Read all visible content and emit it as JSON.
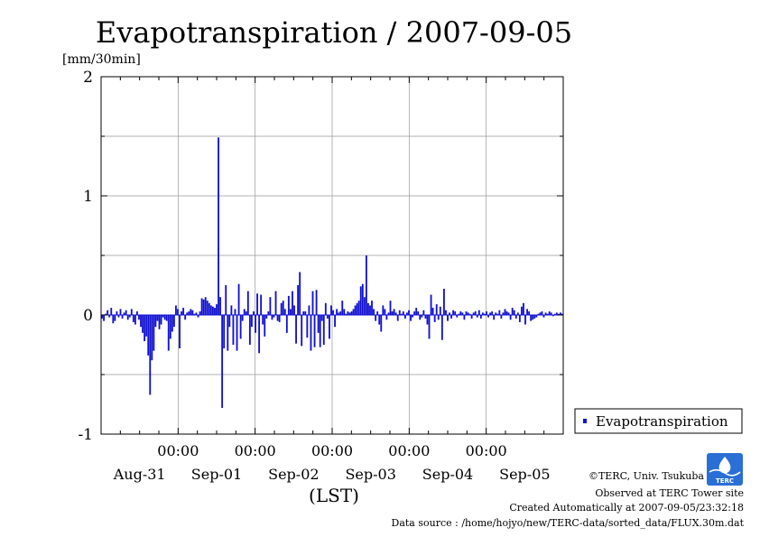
{
  "title": "Evapotranspiration / 2007-09-05",
  "unit_label": "[mm/30min]",
  "xlabel": "(LST)",
  "legend": {
    "label": "Evapotranspiration",
    "color": "#1010d0"
  },
  "footer": {
    "copyright": "©TERC, Univ. Tsukuba",
    "observed": "Observed at TERC Tower site",
    "created": "Created Automatically at 2007-09-05/23:32:18",
    "source": "Data source : /home/hojyo/new/TERC-data/sorted_data/FLUX.30m.dat"
  },
  "logo": {
    "text": "TERC",
    "color": "#2a6fd6"
  },
  "chart_data": {
    "type": "bar",
    "title": "Evapotranspiration / 2007-09-05",
    "ylabel": "[mm/30min]",
    "xlabel": "(LST)",
    "ylim": [
      -1,
      2
    ],
    "yticks": [
      -1,
      0,
      1,
      2
    ],
    "xlim_days": [
      0,
      6
    ],
    "day_labels": [
      "Aug-31",
      "Sep-01",
      "Sep-02",
      "Sep-03",
      "Sep-04",
      "Sep-05"
    ],
    "midnight_labels": [
      "00:00",
      "00:00",
      "00:00",
      "00:00",
      "00:00"
    ],
    "grid": true,
    "legend_position": "right",
    "series": [
      {
        "name": "Evapotranspiration",
        "color": "#1010d0",
        "values": [
          -0.03,
          -0.05,
          0.01,
          0.04,
          -0.02,
          0.06,
          -0.07,
          -0.05,
          0.03,
          -0.02,
          0.05,
          -0.03,
          0.02,
          0.04,
          -0.04,
          -0.02,
          0.05,
          -0.06,
          -0.08,
          0.03,
          -0.04,
          -0.1,
          -0.15,
          -0.22,
          -0.18,
          -0.34,
          -0.67,
          -0.38,
          -0.3,
          -0.1,
          -0.05,
          -0.12,
          -0.08,
          -0.02,
          -0.04,
          -0.05,
          -0.3,
          -0.2,
          -0.14,
          -0.1,
          0.08,
          0.05,
          -0.28,
          0.03,
          0.06,
          -0.04,
          0.02,
          0.03,
          0.05,
          0.04,
          0.01,
          0.02,
          -0.02,
          0.03,
          0.14,
          0.13,
          0.15,
          0.12,
          0.1,
          0.08,
          0.07,
          0.06,
          0.09,
          1.49,
          0.15,
          -0.78,
          -0.28,
          0.25,
          -0.3,
          -0.1,
          0.08,
          -0.25,
          0.05,
          -0.3,
          0.26,
          -0.2,
          -0.05,
          0.05,
          0.03,
          0.2,
          -0.25,
          -0.1,
          0.03,
          -0.15,
          0.18,
          -0.32,
          0.17,
          -0.08,
          -0.18,
          -0.03,
          0.03,
          0.15,
          -0.04,
          -0.02,
          0.2,
          -0.05,
          -0.06,
          0.1,
          0.12,
          0.05,
          -0.15,
          0.16,
          0.05,
          0.2,
          0.08,
          -0.24,
          0.25,
          0.36,
          -0.26,
          0.03,
          0.03,
          -0.19,
          0.08,
          -0.3,
          0.2,
          -0.27,
          0.21,
          -0.15,
          -0.27,
          -0.05,
          -0.25,
          0.1,
          -0.03,
          -0.2,
          0.08,
          0.04,
          -0.1,
          0.05,
          0.02,
          0.03,
          0.12,
          0.05,
          0.01,
          0.03,
          0.02,
          0.03,
          0.05,
          0.08,
          0.1,
          0.12,
          0.24,
          0.26,
          0.15,
          0.5,
          0.1,
          0.08,
          0.12,
          0.05,
          -0.05,
          0.03,
          -0.08,
          -0.14,
          0.08,
          0.05,
          -0.04,
          0.02,
          0.12,
          0.03,
          0.05,
          0.02,
          -0.05,
          0.04,
          0.01,
          0.03,
          -0.03,
          0.02,
          0.04,
          -0.05,
          -0.02,
          0.03,
          0.06,
          0.03,
          -0.04,
          -0.02,
          0.04,
          -0.03,
          -0.08,
          -0.2,
          0.17,
          0.06,
          -0.06,
          0.09,
          -0.04,
          0.07,
          -0.21,
          0.22,
          0.04,
          -0.05,
          0.02,
          -0.03,
          0.04,
          0.03,
          -0.02,
          0.01,
          0.03,
          0.02,
          -0.04,
          0.03,
          0.02,
          0.01,
          -0.03,
          0.02,
          0.03,
          -0.02,
          0.04,
          -0.03,
          0.02,
          0.01,
          0.03,
          -0.02,
          0.02,
          0.03,
          -0.04,
          0.02,
          0.01,
          0.04,
          -0.03,
          0.02,
          0.05,
          0.03,
          0.02,
          -0.04,
          0.06,
          0.04,
          -0.03,
          0.02,
          -0.06,
          0.07,
          0.1,
          -0.08,
          0.05,
          0.03,
          -0.05,
          -0.04,
          -0.03,
          -0.02,
          0.01,
          0.02,
          0.03,
          -0.02,
          0.02,
          0.01,
          0.03,
          0.02,
          -0.01,
          0.01,
          0.02,
          0.01,
          0.02,
          0.01
        ]
      }
    ]
  }
}
